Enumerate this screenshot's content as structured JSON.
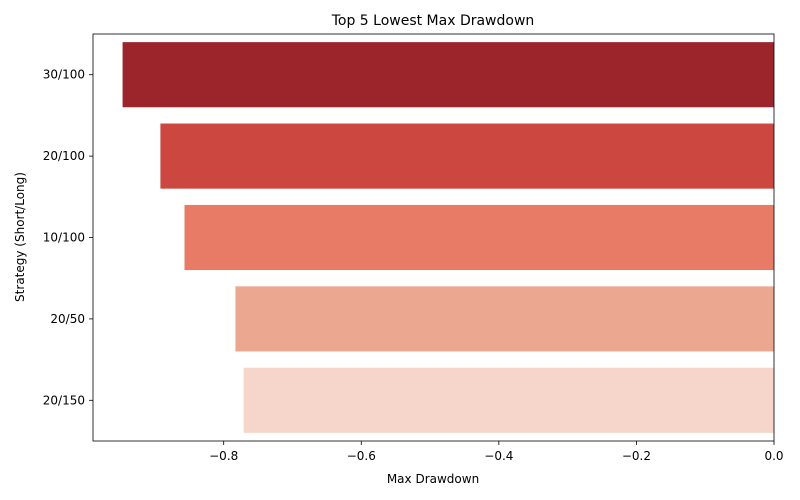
{
  "chart_data": {
    "type": "bar",
    "orientation": "horizontal",
    "title": "Top 5 Lowest Max Drawdown",
    "xlabel": "Max Drawdown",
    "ylabel": "Strategy (Short/Long)",
    "categories": [
      "30/100",
      "20/100",
      "10/100",
      "20/50",
      "20/150"
    ],
    "values": [
      -0.947,
      -0.892,
      -0.857,
      -0.783,
      -0.771
    ],
    "colors": [
      "#9b252b",
      "#cb4740",
      "#e77b65",
      "#eca791",
      "#f6d6ca"
    ],
    "xlim": [
      -0.99,
      0.0
    ],
    "xticks": [
      -0.8,
      -0.6,
      -0.4,
      -0.2,
      0.0
    ],
    "xtick_labels": [
      "−0.8",
      "−0.6",
      "−0.4",
      "−0.2",
      "0.0"
    ],
    "grid": false,
    "legend": false
  }
}
